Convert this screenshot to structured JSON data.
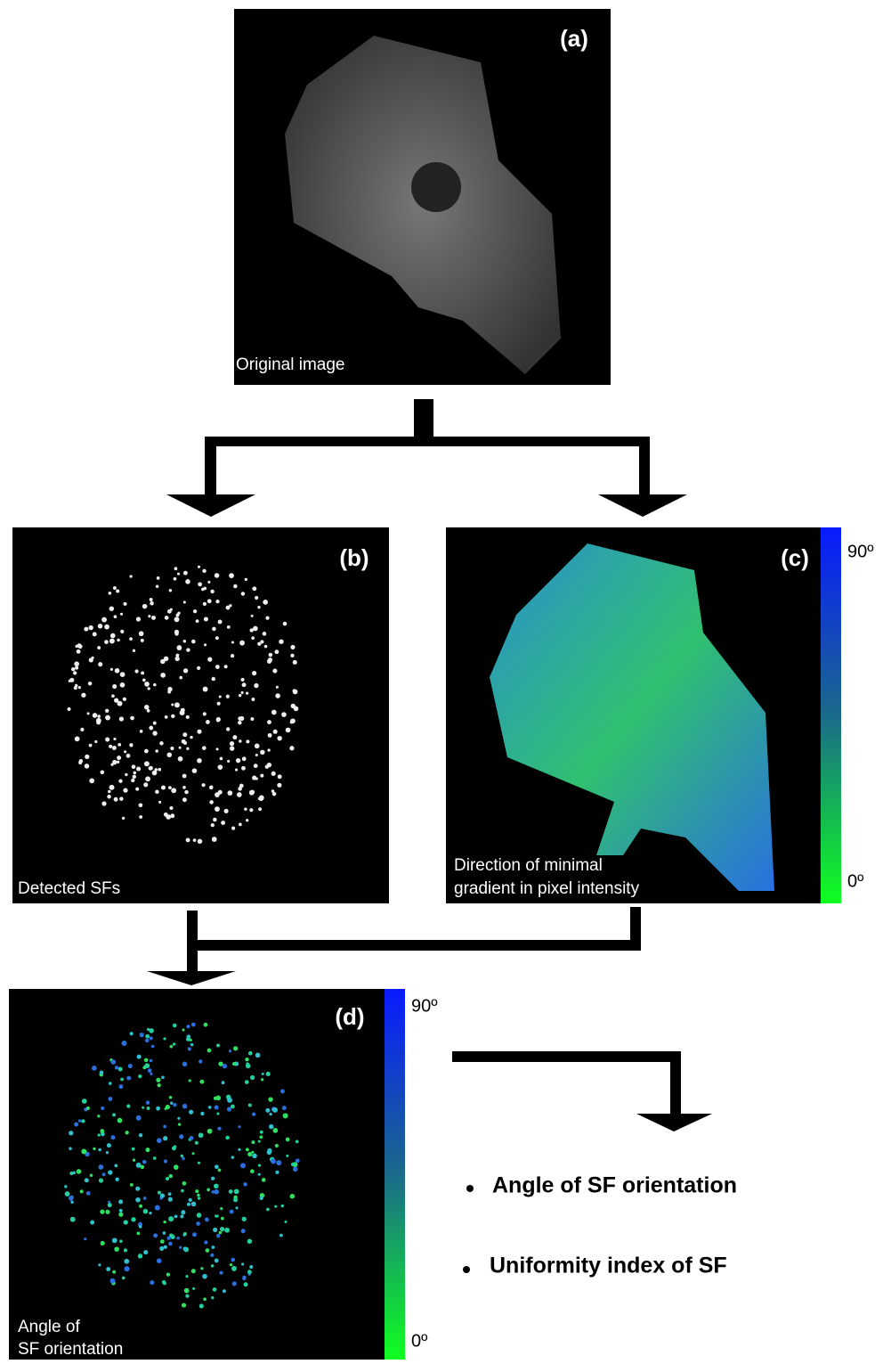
{
  "panels": [
    {
      "label": "(a)",
      "caption": [
        "Original image"
      ]
    },
    {
      "label": "(b)",
      "caption": [
        "Detected SFs"
      ]
    },
    {
      "label": "(c)",
      "caption": [
        "Direction of minimal",
        "gradient in pixel intensity"
      ],
      "colorbar": {
        "top": "90º",
        "bottom": "0º"
      }
    },
    {
      "label": "(d)",
      "caption": [
        "Angle of",
        "SF orientation"
      ],
      "colorbar": {
        "top": "90º",
        "bottom": "0º"
      }
    }
  ],
  "outputs": [
    "Angle of SF orientation",
    "Uniformity index of SF"
  ]
}
